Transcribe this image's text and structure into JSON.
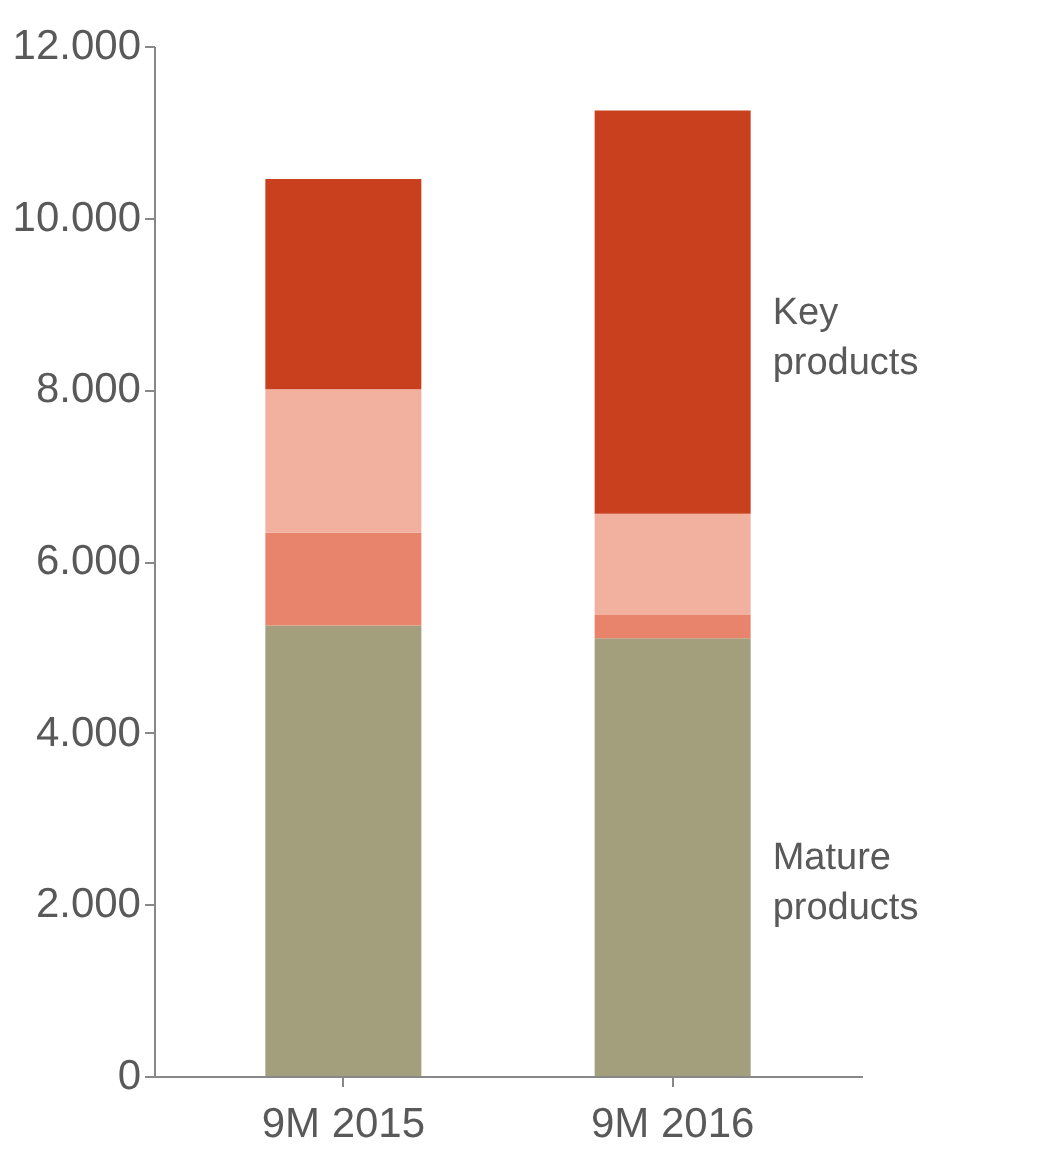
{
  "chart_data": {
    "type": "bar",
    "stacked": true,
    "categories": [
      "9M 2015",
      "9M 2016"
    ],
    "series": [
      {
        "name": "Mature products",
        "color": "#a39e7b",
        "values": [
          5250,
          5100
        ]
      },
      {
        "color": "#e8846c",
        "values": [
          1080,
          270
        ]
      },
      {
        "color": "#f2b09f",
        "values": [
          1670,
          1180
        ]
      },
      {
        "name": "Key products",
        "color": "#c9401e",
        "values": [
          2450,
          4700
        ]
      }
    ],
    "ylim": [
      0,
      12000
    ],
    "yticks": [
      {
        "value": 0,
        "label": "0"
      },
      {
        "value": 2000,
        "label": "2.000"
      },
      {
        "value": 4000,
        "label": "4.000"
      },
      {
        "value": 6000,
        "label": "6.000"
      },
      {
        "value": 8000,
        "label": "8.000"
      },
      {
        "value": 10000,
        "label": "10.000"
      },
      {
        "value": 12000,
        "label": "12.000"
      }
    ],
    "grid": false
  }
}
